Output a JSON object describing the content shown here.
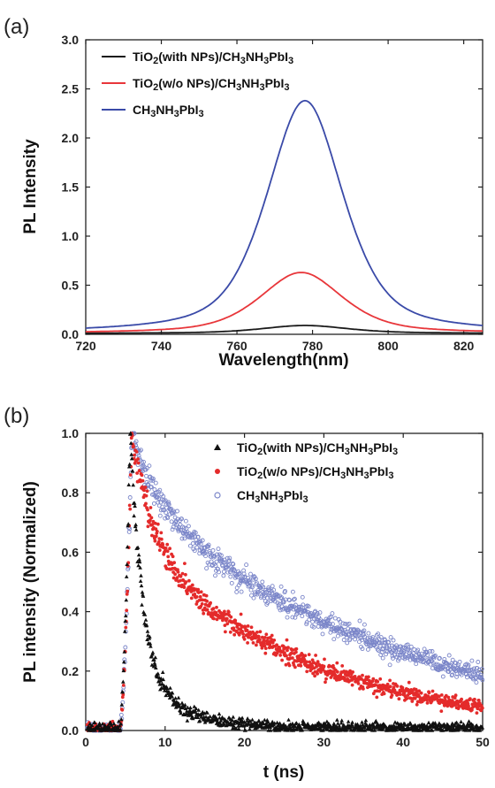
{
  "chart_data": [
    {
      "panel_label": "(a)",
      "type": "line",
      "xlabel": "Wavelength(nm)",
      "ylabel": "PL Intensity",
      "xlim": [
        720,
        825
      ],
      "ylim": [
        0,
        3.0
      ],
      "xticks": [
        "720",
        "740",
        "760",
        "780",
        "800",
        "820"
      ],
      "yticks": [
        "0.0",
        "0.5",
        "1.0",
        "1.5",
        "2.0",
        "2.5",
        "3.0"
      ],
      "legend_position": "top-left",
      "series": [
        {
          "name": "TiO2(with NPs)/CH3NH3PbI3",
          "name_parts": [
            [
              "TiO"
            ],
            [
              "2",
              "sub"
            ],
            [
              "(with NPs)/CH"
            ],
            [
              "3",
              "sub"
            ],
            [
              "NH"
            ],
            [
              "3",
              "sub"
            ],
            [
              "PbI"
            ],
            [
              "3",
              "sub"
            ]
          ],
          "color": "#1a1a1a",
          "peak_x": 778,
          "peak_y": 0.09,
          "base_y": 0.01,
          "width": 27
        },
        {
          "name": "TiO2(w/o NPs)/CH3NH3PbI3",
          "name_parts": [
            [
              "TiO"
            ],
            [
              "2",
              "sub"
            ],
            [
              "(w/o NPs)/CH"
            ],
            [
              "3",
              "sub"
            ],
            [
              "NH"
            ],
            [
              "3",
              "sub"
            ],
            [
              "PbI"
            ],
            [
              "3",
              "sub"
            ]
          ],
          "color": "#e8363a",
          "peak_x": 777,
          "peak_y": 0.63,
          "base_y": 0.01,
          "width": 26
        },
        {
          "name": "CH3NH3PbI3",
          "name_parts": [
            [
              "CH"
            ],
            [
              "3",
              "sub"
            ],
            [
              "NH"
            ],
            [
              "3",
              "sub"
            ],
            [
              "PbI"
            ],
            [
              "3",
              "sub"
            ]
          ],
          "color": "#3a4aa8",
          "peak_x": 778,
          "peak_y": 2.38,
          "base_y": 0.01,
          "width": 24
        }
      ]
    },
    {
      "panel_label": "(b)",
      "type": "scatter",
      "xlabel": "t (ns)",
      "ylabel": "PL intensity (Normalized)",
      "xlim": [
        0,
        50
      ],
      "ylim": [
        0,
        1.0
      ],
      "xticks": [
        "0",
        "10",
        "20",
        "30",
        "40",
        "50"
      ],
      "yticks": [
        "0.0",
        "0.2",
        "0.4",
        "0.6",
        "0.8",
        "1.0"
      ],
      "legend_position": "top-right",
      "series": [
        {
          "name": "TiO2(with NPs)/CH3NH3PbI3",
          "name_parts": [
            [
              "TiO"
            ],
            [
              "2",
              "sub"
            ],
            [
              "(with NPs)/CH"
            ],
            [
              "3",
              "sub"
            ],
            [
              "NH"
            ],
            [
              "3",
              "sub"
            ],
            [
              "PbI"
            ],
            [
              "3",
              "sub"
            ]
          ],
          "color": "#111111",
          "marker": "triangle",
          "rise_start": 4.3,
          "peak_t": 5.6,
          "fast_frac": 0.8,
          "tau_fast": 1.5,
          "tau_slow": 5.0,
          "baseline": 0.01
        },
        {
          "name": "TiO2(w/o NPs)/CH3NH3PbI3",
          "name_parts": [
            [
              "TiO"
            ],
            [
              "2",
              "sub"
            ],
            [
              "(w/o NPs)/CH"
            ],
            [
              "3",
              "sub"
            ],
            [
              "NH"
            ],
            [
              "3",
              "sub"
            ],
            [
              "PbI"
            ],
            [
              "3",
              "sub"
            ]
          ],
          "color": "#e42b2b",
          "marker": "dot",
          "rise_start": 4.3,
          "peak_t": 5.8,
          "fast_frac": 0.35,
          "tau_fast": 2.5,
          "tau_slow": 21.0,
          "baseline": 0.0
        },
        {
          "name": "CH3NH3PbI3",
          "name_parts": [
            [
              "CH"
            ],
            [
              "3",
              "sub"
            ],
            [
              "NH"
            ],
            [
              "3",
              "sub"
            ],
            [
              "PbI"
            ],
            [
              "3",
              "sub"
            ]
          ],
          "color": "#7b86c9",
          "marker": "open-circle",
          "rise_start": 4.3,
          "peak_t": 5.8,
          "fast_frac": 0.18,
          "tau_fast": 2.5,
          "tau_slow": 30.0,
          "baseline": 0.0
        }
      ]
    }
  ]
}
